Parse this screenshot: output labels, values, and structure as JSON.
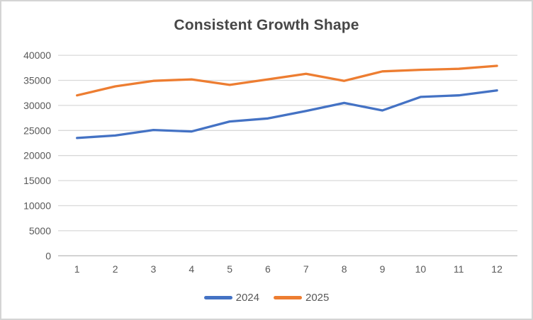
{
  "window": {
    "background": "#ffffff",
    "border_color": "#d4d4d4"
  },
  "chart_data": {
    "type": "line",
    "title": "Consistent Growth Shape",
    "categories": [
      "1",
      "2",
      "3",
      "4",
      "5",
      "6",
      "7",
      "8",
      "9",
      "10",
      "11",
      "12"
    ],
    "series": [
      {
        "name": "2024",
        "color": "#4472C4",
        "values": [
          23500,
          24000,
          25100,
          24800,
          26800,
          27400,
          28900,
          30500,
          29000,
          31700,
          32000,
          33000
        ]
      },
      {
        "name": "2025",
        "color": "#ED7D31",
        "values": [
          32000,
          33800,
          34900,
          35200,
          34100,
          35200,
          36300,
          34900,
          36800,
          37100,
          37300,
          37900
        ]
      }
    ],
    "xlabel": "",
    "ylabel": "",
    "ylim": [
      0,
      40000
    ],
    "ytick_step": 5000,
    "ytick_labels": [
      "0",
      "5000",
      "10000",
      "15000",
      "20000",
      "25000",
      "30000",
      "35000",
      "40000"
    ],
    "grid": "horizontal",
    "legend_position": "bottom",
    "gridline_color": "#D9D9D9",
    "axis_line_color": "#BFBFBF",
    "tick_label_color": "#595959",
    "legend_label_color": "#595959",
    "title_color": "#474747"
  }
}
